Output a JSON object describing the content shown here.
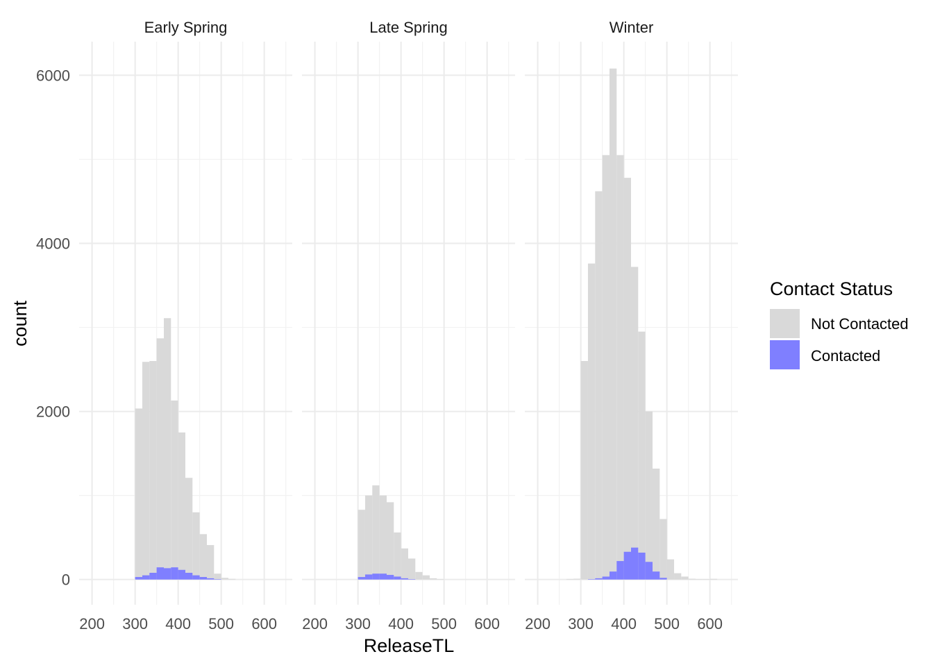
{
  "chart_data": {
    "type": "histogram",
    "facets": [
      "Early Spring",
      "Late Spring",
      "Winter"
    ],
    "xlabel": "ReleaseTL",
    "ylabel": "count",
    "xlim": [
      170,
      665
    ],
    "ylim": [
      -300,
      6400
    ],
    "x_ticks": [
      200,
      300,
      400,
      500,
      600
    ],
    "x_tick_labels": [
      "200",
      "300",
      "400",
      "500",
      "600"
    ],
    "y_ticks": [
      0,
      2000,
      4000,
      6000
    ],
    "y_tick_labels": [
      "0",
      "2000",
      "4000",
      "6000"
    ],
    "bin_width": 16.67,
    "grid": true,
    "legend": {
      "title": "Contact Status",
      "position": "right",
      "entries": [
        {
          "label": "Not Contacted",
          "color": "#d9d9d9"
        },
        {
          "label": "Contacted",
          "color": "#7f7fff"
        }
      ]
    },
    "series": [
      {
        "name": "Not Contacted",
        "color": "#d9d9d9",
        "panels": [
          {
            "facet": "Early Spring",
            "bins": [
              {
                "x0": 300.0,
                "x1": 316.7,
                "count": 2035
              },
              {
                "x0": 316.7,
                "x1": 333.3,
                "count": 2590
              },
              {
                "x0": 333.3,
                "x1": 350.0,
                "count": 2600
              },
              {
                "x0": 350.0,
                "x1": 366.7,
                "count": 2870
              },
              {
                "x0": 366.7,
                "x1": 383.3,
                "count": 3110
              },
              {
                "x0": 383.3,
                "x1": 400.0,
                "count": 2130
              },
              {
                "x0": 400.0,
                "x1": 416.7,
                "count": 1750
              },
              {
                "x0": 416.7,
                "x1": 433.3,
                "count": 1210
              },
              {
                "x0": 433.3,
                "x1": 450.0,
                "count": 800
              },
              {
                "x0": 450.0,
                "x1": 466.7,
                "count": 540
              },
              {
                "x0": 466.7,
                "x1": 483.3,
                "count": 410
              },
              {
                "x0": 483.3,
                "x1": 500.0,
                "count": 70
              },
              {
                "x0": 500.0,
                "x1": 516.7,
                "count": 20
              },
              {
                "x0": 516.7,
                "x1": 533.3,
                "count": 8
              }
            ]
          },
          {
            "facet": "Late Spring",
            "bins": [
              {
                "x0": 300.0,
                "x1": 316.7,
                "count": 830
              },
              {
                "x0": 316.7,
                "x1": 333.3,
                "count": 1000
              },
              {
                "x0": 333.3,
                "x1": 350.0,
                "count": 1120
              },
              {
                "x0": 350.0,
                "x1": 366.7,
                "count": 1000
              },
              {
                "x0": 366.7,
                "x1": 383.3,
                "count": 920
              },
              {
                "x0": 383.3,
                "x1": 400.0,
                "count": 560
              },
              {
                "x0": 400.0,
                "x1": 416.7,
                "count": 370
              },
              {
                "x0": 416.7,
                "x1": 433.3,
                "count": 250
              },
              {
                "x0": 433.3,
                "x1": 450.0,
                "count": 90
              },
              {
                "x0": 450.0,
                "x1": 466.7,
                "count": 50
              },
              {
                "x0": 466.7,
                "x1": 483.3,
                "count": 15
              },
              {
                "x0": 483.3,
                "x1": 500.0,
                "count": 5
              }
            ]
          },
          {
            "facet": "Winter",
            "bins": [
              {
                "x0": 266.7,
                "x1": 283.3,
                "count": 6
              },
              {
                "x0": 283.3,
                "x1": 300.0,
                "count": 10
              },
              {
                "x0": 300.0,
                "x1": 316.7,
                "count": 2600
              },
              {
                "x0": 316.7,
                "x1": 333.3,
                "count": 3760
              },
              {
                "x0": 333.3,
                "x1": 350.0,
                "count": 4620
              },
              {
                "x0": 350.0,
                "x1": 366.7,
                "count": 5050
              },
              {
                "x0": 366.7,
                "x1": 383.3,
                "count": 6080
              },
              {
                "x0": 383.3,
                "x1": 400.0,
                "count": 5050
              },
              {
                "x0": 400.0,
                "x1": 416.7,
                "count": 4780
              },
              {
                "x0": 416.7,
                "x1": 433.3,
                "count": 3720
              },
              {
                "x0": 433.3,
                "x1": 450.0,
                "count": 2950
              },
              {
                "x0": 450.0,
                "x1": 466.7,
                "count": 2000
              },
              {
                "x0": 466.7,
                "x1": 483.3,
                "count": 1320
              },
              {
                "x0": 483.3,
                "x1": 500.0,
                "count": 720
              },
              {
                "x0": 500.0,
                "x1": 516.7,
                "count": 240
              },
              {
                "x0": 516.7,
                "x1": 533.3,
                "count": 75
              },
              {
                "x0": 533.3,
                "x1": 550.0,
                "count": 35
              },
              {
                "x0": 550.0,
                "x1": 566.7,
                "count": 10
              },
              {
                "x0": 566.7,
                "x1": 583.3,
                "count": 5
              },
              {
                "x0": 583.3,
                "x1": 600.0,
                "count": 5
              },
              {
                "x0": 600.0,
                "x1": 616.7,
                "count": 8
              }
            ]
          }
        ]
      },
      {
        "name": "Contacted",
        "color": "#7f7fff",
        "panels": [
          {
            "facet": "Early Spring",
            "bins": [
              {
                "x0": 300.0,
                "x1": 316.7,
                "count": 30
              },
              {
                "x0": 316.7,
                "x1": 333.3,
                "count": 50
              },
              {
                "x0": 333.3,
                "x1": 350.0,
                "count": 80
              },
              {
                "x0": 350.0,
                "x1": 366.7,
                "count": 145
              },
              {
                "x0": 366.7,
                "x1": 383.3,
                "count": 135
              },
              {
                "x0": 383.3,
                "x1": 400.0,
                "count": 145
              },
              {
                "x0": 400.0,
                "x1": 416.7,
                "count": 115
              },
              {
                "x0": 416.7,
                "x1": 433.3,
                "count": 80
              },
              {
                "x0": 433.3,
                "x1": 450.0,
                "count": 50
              },
              {
                "x0": 450.0,
                "x1": 466.7,
                "count": 30
              },
              {
                "x0": 466.7,
                "x1": 483.3,
                "count": 15
              },
              {
                "x0": 483.3,
                "x1": 500.0,
                "count": 5
              }
            ]
          },
          {
            "facet": "Late Spring",
            "bins": [
              {
                "x0": 300.0,
                "x1": 316.7,
                "count": 30
              },
              {
                "x0": 316.7,
                "x1": 333.3,
                "count": 60
              },
              {
                "x0": 333.3,
                "x1": 350.0,
                "count": 70
              },
              {
                "x0": 350.0,
                "x1": 366.7,
                "count": 70
              },
              {
                "x0": 366.7,
                "x1": 383.3,
                "count": 55
              },
              {
                "x0": 383.3,
                "x1": 400.0,
                "count": 35
              },
              {
                "x0": 400.0,
                "x1": 416.7,
                "count": 15
              },
              {
                "x0": 416.7,
                "x1": 433.3,
                "count": 5
              }
            ]
          },
          {
            "facet": "Winter",
            "bins": [
              {
                "x0": 316.7,
                "x1": 333.3,
                "count": 5
              },
              {
                "x0": 333.3,
                "x1": 350.0,
                "count": 15
              },
              {
                "x0": 350.0,
                "x1": 366.7,
                "count": 35
              },
              {
                "x0": 366.7,
                "x1": 383.3,
                "count": 95
              },
              {
                "x0": 383.3,
                "x1": 400.0,
                "count": 220
              },
              {
                "x0": 400.0,
                "x1": 416.7,
                "count": 330
              },
              {
                "x0": 416.7,
                "x1": 433.3,
                "count": 380
              },
              {
                "x0": 433.3,
                "x1": 450.0,
                "count": 320
              },
              {
                "x0": 450.0,
                "x1": 466.7,
                "count": 210
              },
              {
                "x0": 466.7,
                "x1": 483.3,
                "count": 95
              },
              {
                "x0": 483.3,
                "x1": 500.0,
                "count": 20
              }
            ]
          }
        ]
      }
    ]
  }
}
